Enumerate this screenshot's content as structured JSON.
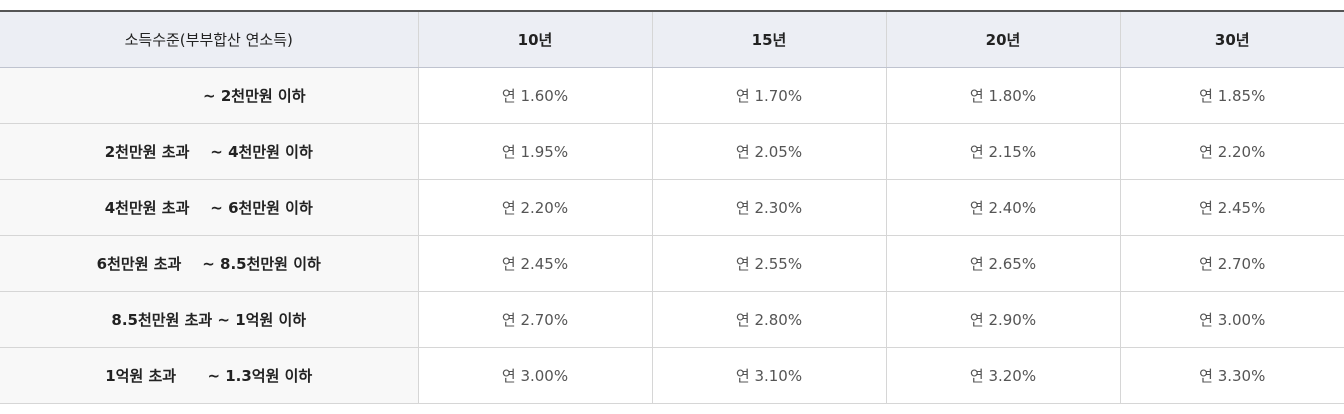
{
  "table": {
    "header": [
      "소득수준(부부합산 연소득)",
      "10년",
      "15년",
      "20년",
      "30년"
    ],
    "rows": [
      [
        "~ 2천만원 이하",
        "연 1.60%",
        "연 1.70%",
        "연 1.80%",
        "연 1.85%"
      ],
      [
        "2천만원 초과    ~ 4천만원 이하",
        "연 1.95%",
        "연 2.05%",
        "연 2.15%",
        "연 2.20%"
      ],
      [
        "4천만원 초과    ~ 6천만원 이하",
        "연 2.20%",
        "연 2.30%",
        "연 2.40%",
        "연 2.45%"
      ],
      [
        "6천만원 초과    ~ 8.5천만원 이하",
        "연 2.45%",
        "연 2.55%",
        "연 2.65%",
        "연 2.70%"
      ],
      [
        "8.5천만원 초과 ~ 1억원 이하",
        "연 2.70%",
        "연 2.80%",
        "연 2.90%",
        "연 3.00%"
      ],
      [
        "1억원 초과      ~ 1.3억원 이하",
        "연 3.00%",
        "연 3.10%",
        "연 3.20%",
        "연 3.30%"
      ]
    ]
  }
}
